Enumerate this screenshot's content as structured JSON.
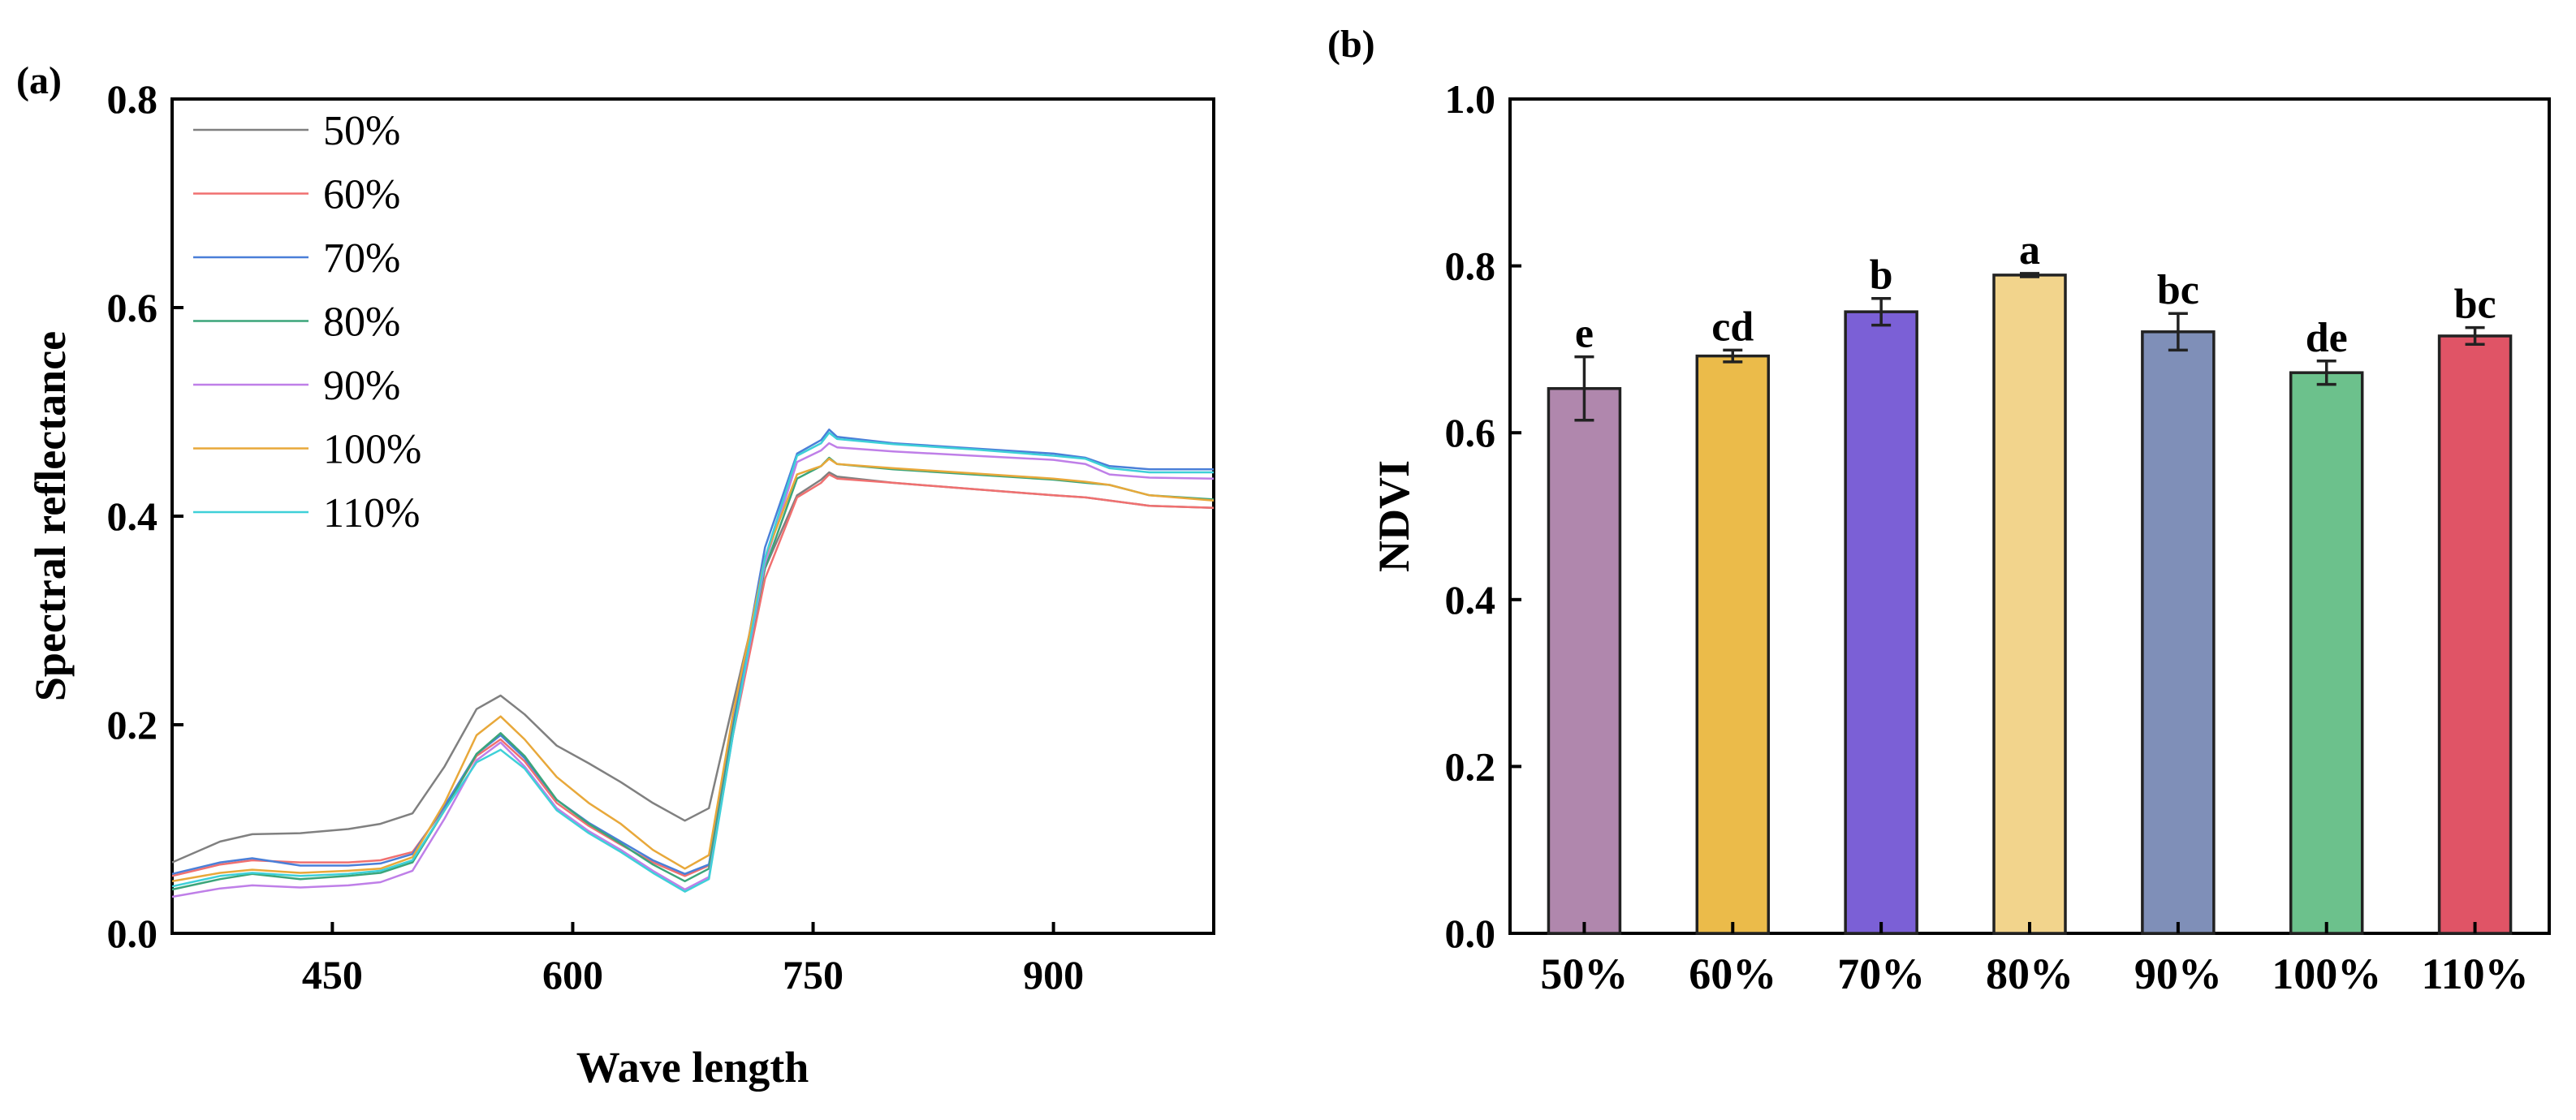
{
  "chart_data": [
    {
      "panel_label": "(a)",
      "type": "line",
      "title": "",
      "xlabel": "Wave length",
      "ylabel": "Spectral reflectance",
      "xlim": [
        350,
        1000
      ],
      "ylim": [
        0.0,
        0.8
      ],
      "xticks": [
        450,
        600,
        750,
        900
      ],
      "xtick_labels": [
        "450",
        "600",
        "750",
        "900"
      ],
      "yticks": [
        0.0,
        0.2,
        0.4,
        0.6,
        0.8
      ],
      "ytick_labels": [
        "0.0",
        "0.2",
        "0.4",
        "0.6",
        "0.8"
      ],
      "grid": false,
      "legend_position": "top-left",
      "x": [
        350,
        380,
        400,
        430,
        460,
        480,
        500,
        520,
        540,
        555,
        570,
        590,
        610,
        630,
        650,
        670,
        685,
        700,
        720,
        740,
        755,
        760,
        765,
        800,
        850,
        900,
        920,
        935,
        960,
        1000
      ],
      "series": [
        {
          "name": "50%",
          "color": "#808080",
          "values": [
            0.068,
            0.088,
            0.095,
            0.096,
            0.1,
            0.105,
            0.115,
            0.16,
            0.215,
            0.228,
            0.21,
            0.18,
            0.163,
            0.145,
            0.125,
            0.108,
            0.12,
            0.22,
            0.35,
            0.42,
            0.435,
            0.442,
            0.438,
            0.432,
            0.426,
            0.42,
            0.418,
            0.415,
            0.41,
            0.408
          ]
        },
        {
          "name": "60%",
          "color": "#f07070",
          "values": [
            0.055,
            0.066,
            0.07,
            0.068,
            0.068,
            0.07,
            0.078,
            0.12,
            0.17,
            0.186,
            0.165,
            0.125,
            0.103,
            0.085,
            0.068,
            0.055,
            0.065,
            0.19,
            0.34,
            0.418,
            0.432,
            0.44,
            0.436,
            0.432,
            0.426,
            0.42,
            0.418,
            0.415,
            0.41,
            0.408
          ]
        },
        {
          "name": "70%",
          "color": "#4a7fd8",
          "values": [
            0.057,
            0.068,
            0.072,
            0.065,
            0.065,
            0.067,
            0.076,
            0.122,
            0.172,
            0.19,
            0.168,
            0.128,
            0.106,
            0.088,
            0.07,
            0.057,
            0.066,
            0.2,
            0.37,
            0.46,
            0.473,
            0.483,
            0.476,
            0.47,
            0.465,
            0.46,
            0.456,
            0.448,
            0.445,
            0.445
          ]
        },
        {
          "name": "80%",
          "color": "#3ba57a",
          "values": [
            0.042,
            0.052,
            0.057,
            0.052,
            0.055,
            0.058,
            0.068,
            0.118,
            0.172,
            0.192,
            0.17,
            0.128,
            0.105,
            0.086,
            0.066,
            0.05,
            0.062,
            0.195,
            0.35,
            0.436,
            0.448,
            0.456,
            0.45,
            0.445,
            0.44,
            0.435,
            0.432,
            0.43,
            0.42,
            0.416
          ]
        },
        {
          "name": "90%",
          "color": "#bf7fe8",
          "values": [
            0.035,
            0.043,
            0.046,
            0.044,
            0.046,
            0.049,
            0.06,
            0.11,
            0.166,
            0.183,
            0.16,
            0.12,
            0.098,
            0.08,
            0.06,
            0.042,
            0.054,
            0.19,
            0.355,
            0.452,
            0.463,
            0.47,
            0.466,
            0.462,
            0.458,
            0.454,
            0.45,
            0.44,
            0.437,
            0.436
          ]
        },
        {
          "name": "100%",
          "color": "#e8a83a",
          "values": [
            0.05,
            0.058,
            0.061,
            0.058,
            0.06,
            0.062,
            0.073,
            0.125,
            0.19,
            0.208,
            0.186,
            0.15,
            0.125,
            0.105,
            0.08,
            0.062,
            0.075,
            0.21,
            0.36,
            0.44,
            0.448,
            0.455,
            0.45,
            0.446,
            0.441,
            0.436,
            0.433,
            0.43,
            0.42,
            0.415
          ]
        },
        {
          "name": "110%",
          "color": "#3ed0d8",
          "values": [
            0.045,
            0.055,
            0.058,
            0.055,
            0.057,
            0.06,
            0.07,
            0.118,
            0.164,
            0.176,
            0.158,
            0.118,
            0.096,
            0.078,
            0.058,
            0.04,
            0.052,
            0.19,
            0.36,
            0.458,
            0.47,
            0.48,
            0.474,
            0.469,
            0.464,
            0.458,
            0.455,
            0.446,
            0.442,
            0.442
          ]
        }
      ]
    },
    {
      "panel_label": "(b)",
      "type": "bar",
      "title": "",
      "xlabel": "",
      "ylabel": "NDVI",
      "ylim": [
        0.0,
        1.0
      ],
      "yticks": [
        0.0,
        0.2,
        0.4,
        0.6,
        0.8,
        1.0
      ],
      "ytick_labels": [
        "0.0",
        "0.2",
        "0.4",
        "0.6",
        "0.8",
        "1.0"
      ],
      "grid": false,
      "categories": [
        "50%",
        "60%",
        "70%",
        "80%",
        "90%",
        "100%",
        "110%"
      ],
      "values": [
        0.653,
        0.692,
        0.745,
        0.789,
        0.721,
        0.672,
        0.716
      ],
      "errors": [
        0.038,
        0.007,
        0.016,
        0.002,
        0.022,
        0.014,
        0.01
      ],
      "significance": [
        "e",
        "cd",
        "b",
        "a",
        "bc",
        "de",
        "bc"
      ],
      "colors": [
        "#b087ad",
        "#ebbb4a",
        "#7b60d6",
        "#f2d48c",
        "#7f8fb8",
        "#6cc18c",
        "#e05466"
      ]
    }
  ]
}
